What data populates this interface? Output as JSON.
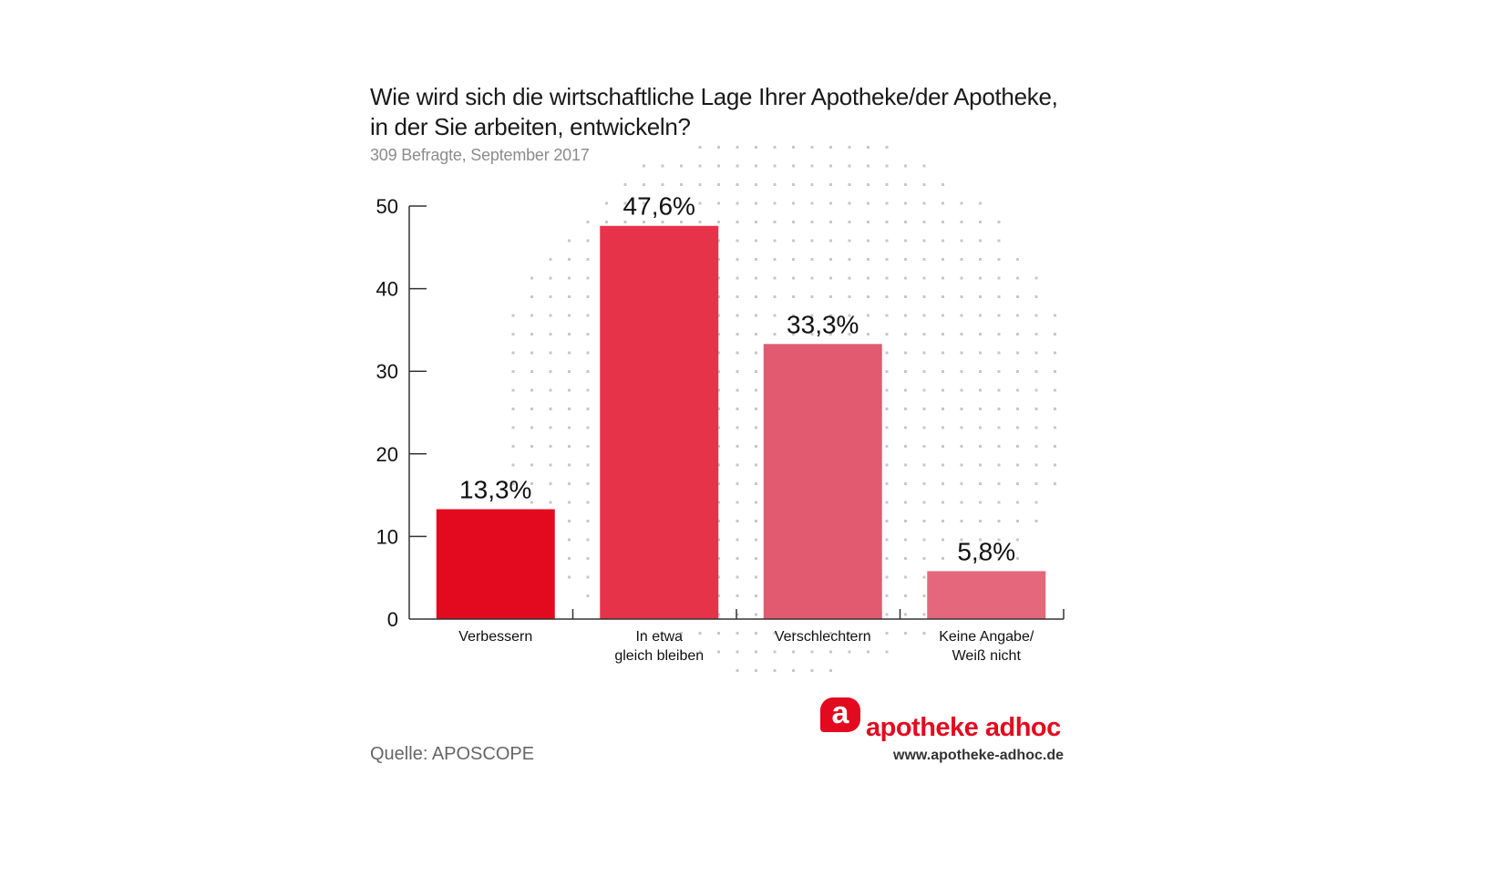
{
  "header": {
    "title_line1": "Wie wird sich die wirtschaftliche Lage Ihrer Apotheke/der Apotheke,",
    "title_line2": "in der Sie arbeiten, entwickeln?",
    "subtitle": "309 Befragte, September 2017"
  },
  "footer": {
    "source": "Quelle: APOSCOPE",
    "logo_letter": "a",
    "logo_text": "apotheke adhoc",
    "logo_url": "www.apotheke-adhoc.de"
  },
  "colors": {
    "bar1": "#e30a1f",
    "bar2": "#e6334a",
    "bar3": "#e25a70",
    "bar4": "#e5677c",
    "axis": "#333333",
    "dots": "#c8c8c8",
    "brand": "#e30a1f"
  },
  "chart_data": {
    "type": "bar",
    "title": "Wie wird sich die wirtschaftliche Lage Ihrer Apotheke/der Apotheke, in der Sie arbeiten, entwickeln?",
    "subtitle": "309 Befragte, September 2017",
    "categories": [
      "Verbessern",
      "In etwa\ngleich bleiben",
      "Verschlechtern",
      "Keine Angabe/\nWeiß nicht"
    ],
    "values": [
      13.3,
      47.6,
      33.3,
      5.8
    ],
    "value_labels": [
      "13,3%",
      "47,6%",
      "33,3%",
      "5,8%"
    ],
    "yticks": [
      0,
      10,
      20,
      30,
      40,
      50
    ],
    "ylim": [
      0,
      50
    ],
    "xlabel": "",
    "ylabel": "",
    "grid": false,
    "legend": "none"
  }
}
